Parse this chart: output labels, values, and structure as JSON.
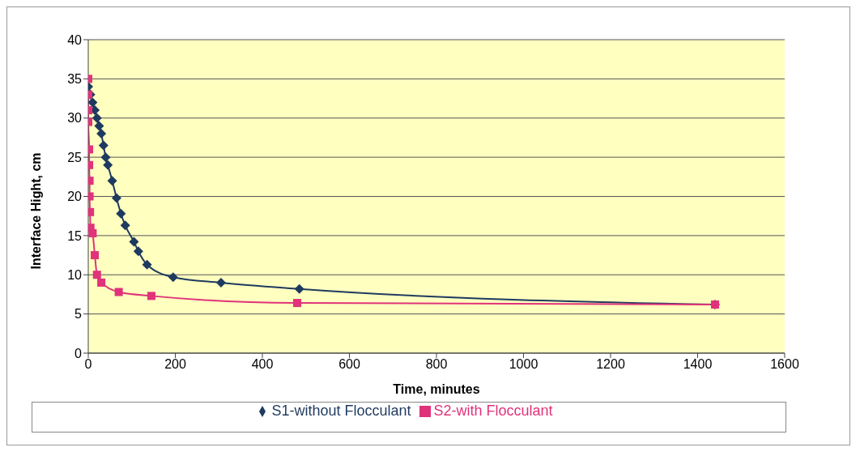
{
  "chart_data": {
    "type": "line",
    "xlabel": "Time, minutes",
    "ylabel": "Interface Hight, cm",
    "xlim": [
      0,
      1600
    ],
    "xticks": [
      0,
      200,
      400,
      600,
      800,
      1000,
      1200,
      1400,
      1600
    ],
    "ylim": [
      0,
      40
    ],
    "yticks": [
      0,
      5,
      10,
      15,
      20,
      25,
      30,
      35,
      40
    ],
    "grid": "y",
    "legend": "bottom",
    "series": [
      {
        "name": "S1-without Flocculant",
        "color": "#1f3a5f",
        "marker": "diamond",
        "x": [
          0,
          5,
          10,
          15,
          20,
          25,
          30,
          35,
          40,
          45,
          55,
          65,
          75,
          85,
          105,
          115,
          135,
          195,
          305,
          485,
          1440
        ],
        "values": [
          34,
          33,
          32,
          31,
          30,
          29,
          28,
          26.5,
          25,
          24,
          22,
          19.8,
          17.8,
          16.3,
          14.2,
          13,
          11.3,
          9.7,
          9,
          8.2,
          6.2
        ]
      },
      {
        "name": "S2-with Flocculant",
        "color": "#e0337a",
        "marker": "square",
        "x": [
          0,
          0,
          0,
          0,
          2,
          2,
          3,
          3,
          4,
          5,
          10,
          15,
          20,
          30,
          70,
          145,
          480,
          1440
        ],
        "values": [
          35,
          33,
          31,
          29.5,
          26,
          24,
          22,
          20,
          18,
          16,
          15.3,
          12.5,
          10,
          9,
          7.8,
          7.3,
          6.4,
          6.2
        ]
      }
    ]
  }
}
